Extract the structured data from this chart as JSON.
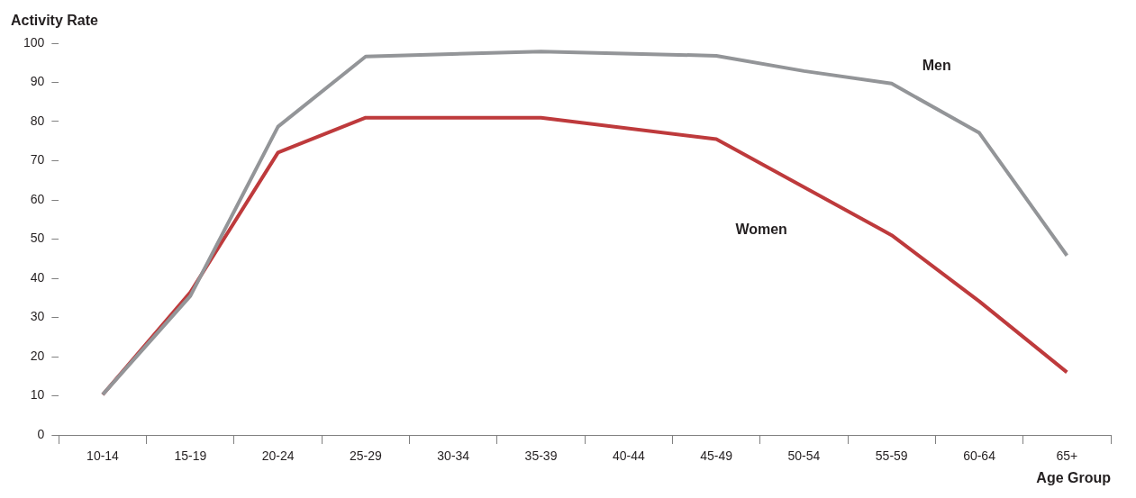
{
  "chart_data": {
    "type": "line",
    "xlabel": "Age Group",
    "ylabel": "Activity Rate",
    "categories": [
      "10-14",
      "15-19",
      "20-24",
      "25-29",
      "30-34",
      "35-39",
      "40-44",
      "45-49",
      "50-54",
      "55-59",
      "60-64",
      "65+"
    ],
    "series": [
      {
        "name": "Men",
        "color": "#939598",
        "values": [
          10.3,
          35.5,
          78.7,
          96.6,
          null,
          97.9,
          null,
          96.8,
          92.9,
          89.7,
          77.1,
          45.8
        ]
      },
      {
        "name": "Women",
        "color": "#be3a3c",
        "values": [
          10.3,
          36.4,
          72.1,
          81,
          null,
          81,
          null,
          75.5,
          null,
          51,
          34.1,
          16
        ]
      }
    ],
    "ylim": [
      0,
      100
    ],
    "yticks": [
      0,
      10,
      20,
      30,
      40,
      50,
      60,
      70,
      80,
      90,
      100
    ],
    "grid": false,
    "legend": false,
    "marker": "none",
    "line_style": "solid"
  }
}
